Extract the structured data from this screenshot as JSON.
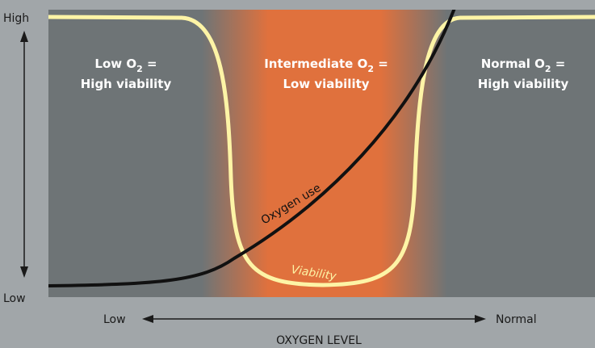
{
  "regions": {
    "low": {
      "line1_prefix": "Low O",
      "line1_sub": "2",
      "line1_suffix": " =",
      "line2": "High viability"
    },
    "intermediate": {
      "line1_prefix": "Intermediate O",
      "line1_sub": "2",
      "line1_suffix": " =",
      "line2": "Low viability"
    },
    "normal": {
      "line1_prefix": "Normal O",
      "line1_sub": "2",
      "line1_suffix": " =",
      "line2": "High viability"
    }
  },
  "y_axis": {
    "high_label": "High",
    "low_label": "Low"
  },
  "x_axis": {
    "low_label": "Low",
    "normal_label": "Normal",
    "title": "OXYGEN LEVEL"
  },
  "curves": {
    "oxygen_use_label": "Oxygen use",
    "viability_label": "Viability"
  },
  "colors": {
    "background": "#a1a6a9",
    "panel_gray": "#6e7476",
    "intermediate_orange": "#e0713d",
    "viability_curve": "#fdf4a6",
    "oxygen_curve": "#111111",
    "axis": "#1a1a1a"
  }
}
